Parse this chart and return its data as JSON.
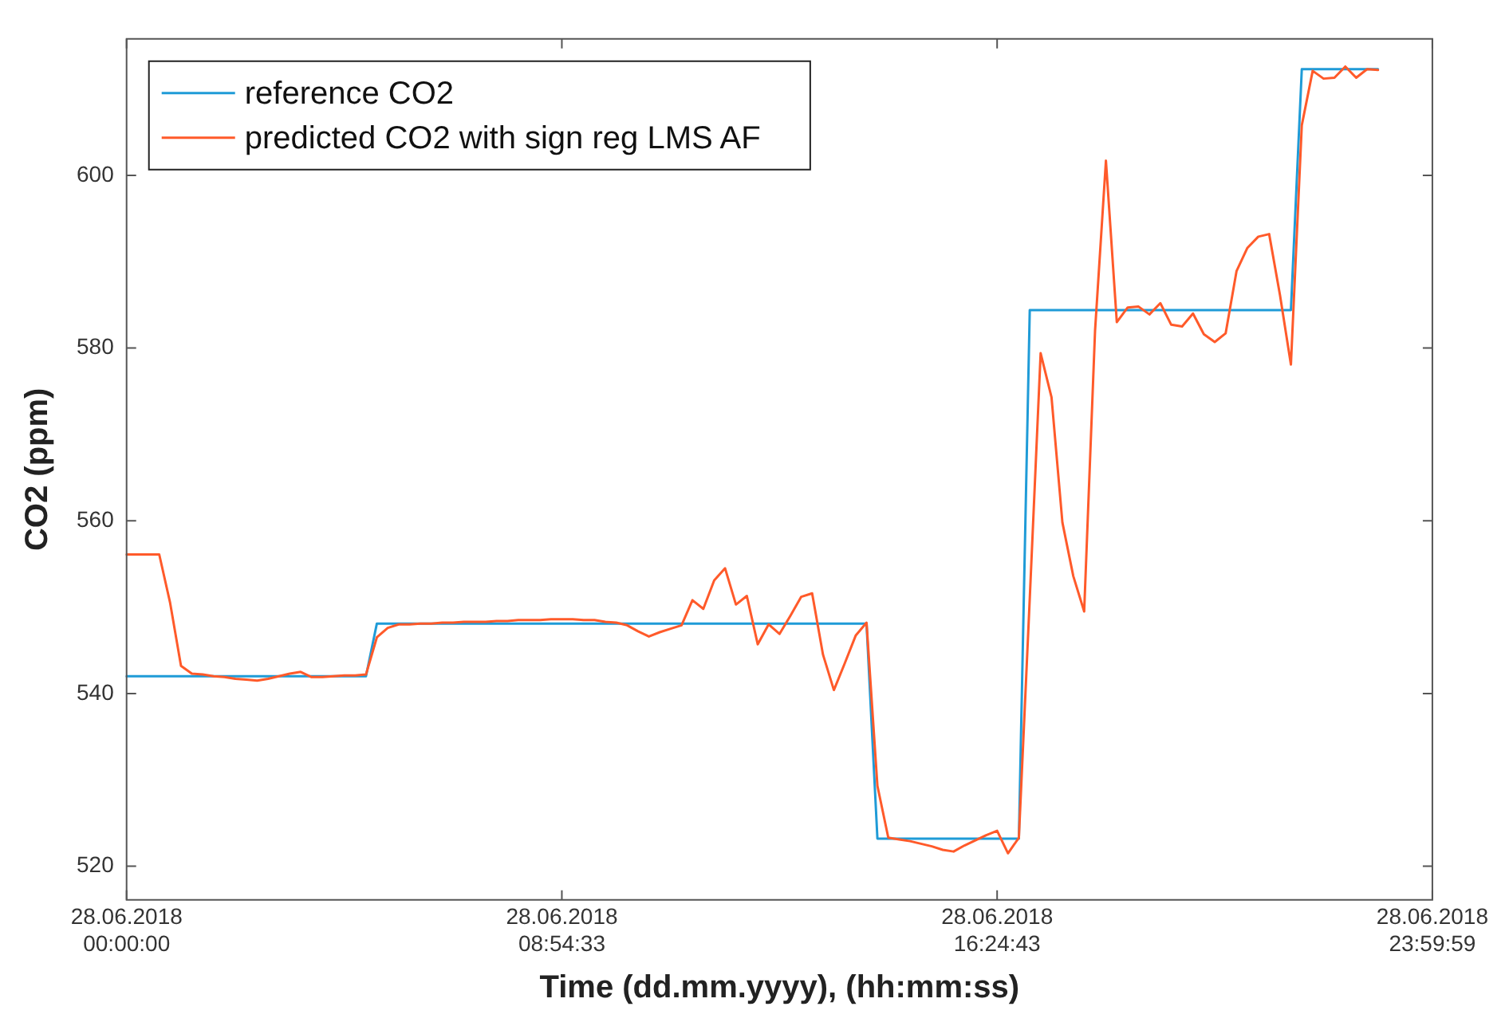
{
  "chart_data": {
    "type": "line",
    "xlabel": "Time (dd.mm.yyyy), (hh:mm:ss)",
    "ylabel": "CO2 (ppm)",
    "categories": [
      "28.06.2018 00:00:00",
      null,
      null,
      null,
      null,
      null,
      null,
      null,
      null,
      null,
      null,
      null,
      null,
      null,
      null,
      null,
      null,
      null,
      null,
      null,
      null,
      null,
      null,
      null,
      null,
      null,
      null,
      null,
      null,
      null,
      null,
      null,
      null,
      null,
      null,
      null,
      null,
      null,
      null,
      null,
      "28.06.2018 08:54:33",
      null,
      null,
      null,
      null,
      null,
      null,
      null,
      null,
      null,
      null,
      null,
      null,
      null,
      null,
      null,
      null,
      null,
      null,
      null,
      null,
      null,
      null,
      null,
      null,
      null,
      null,
      null,
      null,
      null,
      null,
      null,
      null,
      null,
      null,
      null,
      null,
      null,
      null,
      null,
      "28.06.2018 16:24:43",
      null,
      null,
      null,
      null,
      null,
      null,
      null,
      null,
      null,
      null,
      null,
      null,
      null,
      null,
      null,
      null,
      null,
      null,
      null,
      null,
      null,
      null,
      null,
      null,
      null,
      null,
      null,
      null,
      null,
      null,
      null,
      null,
      null,
      null,
      null,
      null,
      null,
      null,
      null,
      "28.06.2018 23:59:59"
    ],
    "ylim": [
      516.1,
      615.8
    ],
    "yticks": [
      520,
      540,
      560,
      580,
      600
    ],
    "grid": false,
    "legend": "top left",
    "marker": "none",
    "line_style": "solid",
    "series": [
      {
        "name": "reference CO2",
        "color": "#1f9bd7",
        "values": [
          542,
          542,
          542,
          542,
          542,
          542,
          542,
          542,
          542,
          542,
          542,
          542,
          542,
          542,
          542,
          542,
          542,
          542,
          542,
          542,
          542,
          542,
          542,
          548.1,
          548.1,
          548.1,
          548.1,
          548.1,
          548.1,
          548.1,
          548.1,
          548.1,
          548.1,
          548.1,
          548.1,
          548.1,
          548.1,
          548.1,
          548.1,
          548.1,
          548.1,
          548.1,
          548.1,
          548.1,
          548.1,
          548.1,
          548.1,
          548.1,
          548.1,
          548.1,
          548.1,
          548.1,
          548.1,
          548.1,
          548.1,
          548.1,
          548.1,
          548.1,
          548.1,
          548.1,
          548.1,
          548.1,
          548.1,
          548.1,
          548.1,
          548.1,
          548.1,
          548.1,
          548.1,
          523.2,
          523.2,
          523.2,
          523.2,
          523.2,
          523.2,
          523.2,
          523.2,
          523.2,
          523.2,
          523.2,
          523.2,
          523.2,
          523.2,
          584.4,
          584.4,
          584.4,
          584.4,
          584.4,
          584.4,
          584.4,
          584.4,
          584.4,
          584.4,
          584.4,
          584.4,
          584.4,
          584.4,
          584.4,
          584.4,
          584.4,
          584.4,
          584.4,
          584.4,
          584.4,
          584.4,
          584.4,
          584.4,
          584.4,
          612.3,
          612.3,
          612.3,
          612.3,
          612.3,
          612.3,
          612.3,
          612.3,
          null,
          null,
          null,
          null,
          null
        ]
      },
      {
        "name": "predicted CO2 with sign reg LMS AF",
        "color": "#ff5a2a",
        "values": [
          556.1,
          556.1,
          556.1,
          556.1,
          550.5,
          543.2,
          542.3,
          542.2,
          542,
          541.9,
          541.7,
          541.6,
          541.5,
          541.7,
          542,
          542.3,
          542.5,
          541.9,
          541.9,
          542,
          542.1,
          542.1,
          542.2,
          546.5,
          547.6,
          548,
          548,
          548.1,
          548.1,
          548.2,
          548.2,
          548.3,
          548.3,
          548.3,
          548.4,
          548.4,
          548.5,
          548.5,
          548.5,
          548.6,
          548.6,
          548.6,
          548.5,
          548.5,
          548.3,
          548.2,
          547.9,
          547.2,
          546.6,
          547.1,
          547.5,
          547.9,
          550.8,
          549.8,
          553.1,
          554.5,
          550.3,
          551.3,
          545.7,
          548,
          546.9,
          549,
          551.2,
          551.6,
          544.5,
          540.4,
          543.5,
          546.7,
          548.2,
          529.3,
          523.3,
          523.1,
          522.9,
          522.6,
          522.3,
          521.9,
          521.7,
          522.4,
          523,
          523.6,
          524.1,
          521.5,
          523.3,
          551,
          579.4,
          574.3,
          559.8,
          553.6,
          549.5,
          582,
          601.7,
          583,
          584.7,
          584.8,
          583.9,
          585.2,
          582.7,
          582.5,
          584,
          581.6,
          580.7,
          581.7,
          588.9,
          591.6,
          592.9,
          593.2,
          586.1,
          578.1,
          605.8,
          612.1,
          611.2,
          611.3,
          612.6,
          611.3,
          612.3,
          612.2,
          null,
          null,
          null,
          null,
          null
        ]
      }
    ]
  }
}
